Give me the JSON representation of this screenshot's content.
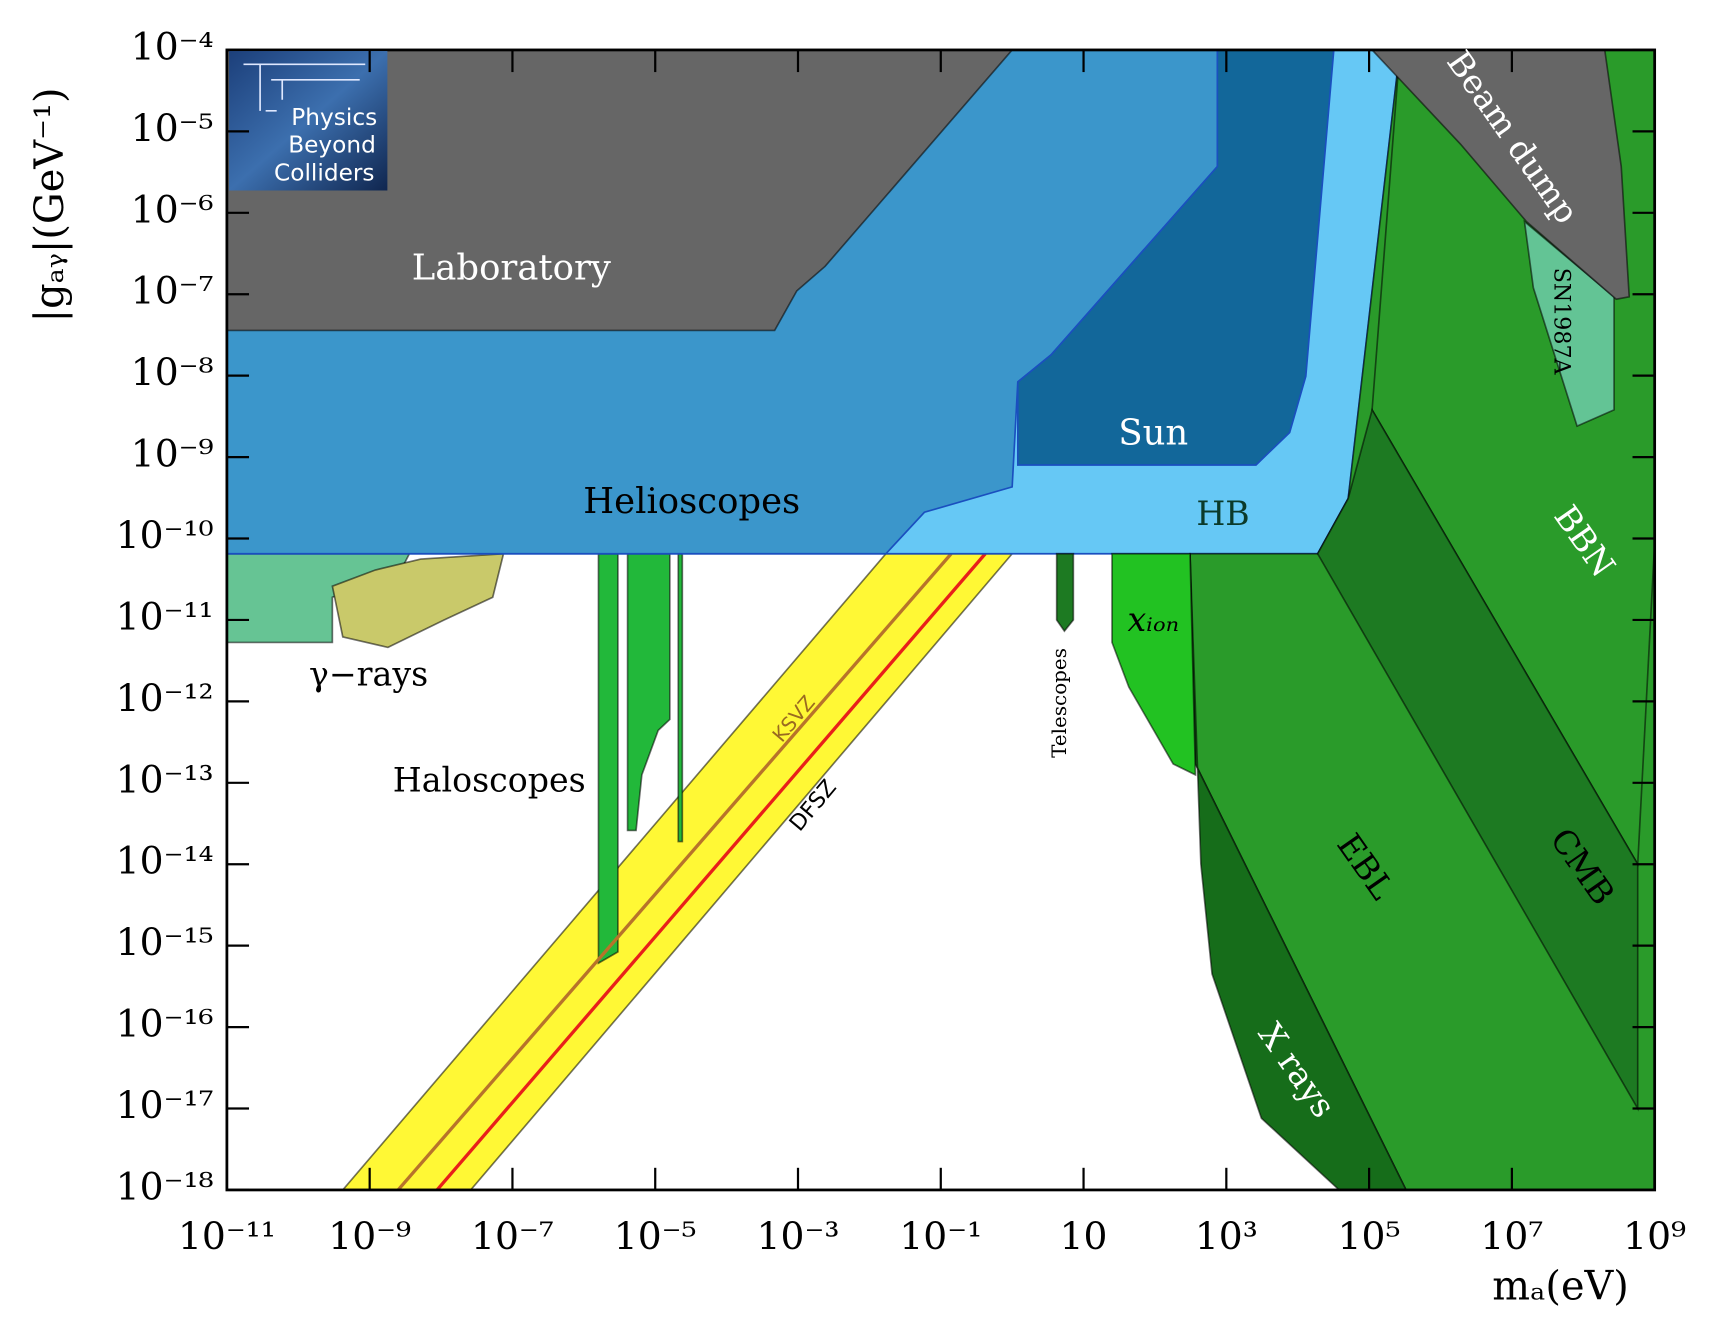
{
  "chart_data": {
    "type": "area",
    "xlabel": "mₐ(eV)",
    "ylabel": "|gₐᵧ|(GeV⁻¹)",
    "logo": [
      "Physics",
      "Beyond",
      "Colliders"
    ],
    "xscale": "log",
    "yscale": "log",
    "xlim": [
      1e-11,
      1000000000.0
    ],
    "ylim": [
      1e-18,
      0.0001
    ],
    "xticks": [
      {
        "value": 1e-11,
        "label": "10⁻¹¹"
      },
      {
        "value": 1e-09,
        "label": "10⁻⁹"
      },
      {
        "value": 1e-07,
        "label": "10⁻⁷"
      },
      {
        "value": 1e-05,
        "label": "10⁻⁵"
      },
      {
        "value": 0.001,
        "label": "10⁻³"
      },
      {
        "value": 0.1,
        "label": "10⁻¹"
      },
      10,
      {
        "value": 1000.0,
        "label": "10³"
      },
      {
        "value": 100000.0,
        "label": "10⁵"
      },
      {
        "value": 10000000.0,
        "label": "10⁷"
      },
      {
        "value": 1000000000.0,
        "label": "10⁹"
      }
    ],
    "yticks": [
      {
        "value": 0.0001,
        "label": "10⁻⁴"
      },
      {
        "value": 1e-05,
        "label": "10⁻⁵"
      },
      {
        "value": 1e-06,
        "label": "10⁻⁶"
      },
      {
        "value": 1e-07,
        "label": "10⁻⁷"
      },
      {
        "value": 1e-08,
        "label": "10⁻⁸"
      },
      {
        "value": 1e-09,
        "label": "10⁻⁹"
      },
      {
        "value": 1e-10,
        "label": "10⁻¹⁰"
      },
      {
        "value": 1e-11,
        "label": "10⁻¹¹"
      },
      {
        "value": 1e-12,
        "label": "10⁻¹²"
      },
      {
        "value": 1e-13,
        "label": "10⁻¹³"
      },
      {
        "value": 1e-14,
        "label": "10⁻¹⁴"
      },
      {
        "value": 1e-15,
        "label": "10⁻¹⁵"
      },
      {
        "value": 1e-16,
        "label": "10⁻¹⁶"
      },
      {
        "value": 1e-17,
        "label": "10⁻¹⁷"
      },
      {
        "value": 1e-18,
        "label": "10⁻¹⁸"
      }
    ],
    "regions": [
      {
        "color": "#fff835",
        "x": [
          4.2e-10,
          2.6e-08,
          1.0,
          0.017
        ],
        "y": [
          1e-18,
          1e-18,
          6.5e-11,
          6.5e-11
        ]
      },
      {
        "name": "γ−rays",
        "color": "#66c494",
        "x": [
          1e-11,
          3.6e-09,
          2.5e-09,
          3e-10,
          3e-10,
          1e-11
        ],
        "y": [
          6.5e-11,
          6.5e-11,
          3.5e-11,
          1.9e-11,
          5.3e-12,
          5.3e-12
        ]
      },
      {
        "color": "#c9c96a",
        "x": [
          3e-10,
          1.2e-09,
          5.2e-09,
          7.5e-08,
          5.3e-08,
          1.1e-08,
          1.8e-09,
          4.2e-10
        ],
        "y": [
          2.6e-11,
          4.1e-11,
          5.6e-11,
          6.5e-11,
          1.9e-11,
          1e-11,
          4.6e-12,
          6.2e-12
        ]
      },
      {
        "name": "Haloscopes",
        "color": "#22b83a",
        "x": [
          1.6e-06,
          3e-06,
          3e-06,
          1.6e-06
        ],
        "y": [
          6.5e-11,
          6.5e-11,
          8.4e-16,
          6.1e-16
        ]
      },
      {
        "color": "#22b83a",
        "x": [
          4.1e-06,
          1.6e-05,
          1.6e-05,
          1.1e-05,
          6.5e-06,
          5.4e-06,
          4.1e-06
        ],
        "y": [
          6.5e-11,
          6.5e-11,
          6e-13,
          4.4e-13,
          1.25e-13,
          2.6e-14,
          2.6e-14
        ]
      },
      {
        "color": "#22b83a",
        "x": [
          2.1e-05,
          2.4e-05,
          2.4e-05,
          2.1e-05
        ],
        "y": [
          6.5e-11,
          6.5e-11,
          1.9e-14,
          1.9e-14
        ]
      },
      {
        "name": "HB",
        "color": "#66c8f5",
        "x": [
          1e-11,
          19000.0,
          51000.0,
          270000.0,
          1e-11
        ],
        "y": [
          6.5e-11,
          6.5e-11,
          3.1e-10,
          0.0001,
          0.0001
        ]
      },
      {
        "name": "Helioscopes",
        "color": "#3b96cb",
        "x": [
          1e-11,
          0.017,
          0.059,
          1.0,
          1.2,
          3.5,
          750,
          750,
          1e-11
        ],
        "y": [
          6.5e-11,
          6.5e-11,
          2.1e-10,
          4.3e-10,
          8.4e-09,
          1.8e-08,
          3.7e-06,
          0.0001,
          0.0001
        ]
      },
      {
        "name": "Sun",
        "color": "#12679a",
        "x": [
          1.2,
          2600,
          7700,
          13000.0,
          32000.0,
          750,
          750,
          3.5,
          1.2
        ],
        "y": [
          8e-10,
          8e-10,
          2e-09,
          9.8e-09,
          0.0001,
          0.0001,
          3.7e-06,
          1.8e-08,
          8.4e-09
        ]
      },
      {
        "name": "Laboratory",
        "color": "#666666",
        "x": [
          1e-11,
          1.0,
          0.0024,
          0.00096,
          0.00047,
          1e-11
        ],
        "y": [
          0.0001,
          0.0001,
          2.2e-07,
          1.1e-07,
          3.6e-08,
          3.6e-08
        ]
      },
      {
        "name": "EBL",
        "color": "#2a9b2a",
        "x": [
          310,
          19000.0,
          51000.0,
          270000.0,
          1000000000.0,
          1000000000.0,
          330000.0,
          370
        ],
        "y": [
          6.5e-11,
          6.5e-11,
          3.1e-10,
          0.0001,
          0.0001,
          1e-18,
          1e-18,
          1.7e-13
        ]
      },
      {
        "name": "BBN",
        "color": "#2a9b2a",
        "x": [
          270000.0,
          1000000000.0,
          1000000000.0,
          580000000.0,
          110000.0
        ],
        "y": [
          0.0001,
          0.0001,
          8.9e-11,
          1e-14,
          3.8e-09
        ]
      },
      {
        "name": "CMB",
        "color": "#1d7a22",
        "x": [
          19000.0,
          51000.0,
          110000.0,
          580000000.0,
          580000000.0
        ],
        "y": [
          6.5e-11,
          3.1e-10,
          3.8e-09,
          1e-14,
          1e-17
        ]
      },
      {
        "name": "X rays",
        "color": "#166d1a",
        "x": [
          310,
          370,
          330000.0,
          38000.0,
          3100,
          630,
          440
        ],
        "y": [
          6.5e-11,
          1.7e-13,
          1e-18,
          1e-18,
          7.6e-18,
          4.5e-16,
          1e-14
        ]
      },
      {
        "name": "xᵢₒₙ",
        "color": "#22c222",
        "x": [
          25,
          310,
          370,
          180,
          43,
          25
        ],
        "y": [
          6.5e-11,
          6.5e-11,
          1.25e-13,
          1.7e-13,
          1.5e-12,
          5.3e-12
        ]
      },
      {
        "name": "Telescopes",
        "color": "#1d7a22",
        "x": [
          4.2,
          7.2,
          7.2,
          5.4,
          4.2
        ],
        "y": [
          6.5e-11,
          6.5e-11,
          1e-11,
          7.3e-12,
          1e-11
        ]
      },
      {
        "name": "SN1987A",
        "color": "#63c495",
        "x": [
          15000000.0,
          270000000.0,
          270000000.0,
          82000000.0,
          20000000.0
        ],
        "y": [
          7.8e-07,
          9.3e-08,
          3.8e-09,
          2.4e-09,
          1.2e-07
        ]
      },
      {
        "name": "Beam dump",
        "color": "#666666",
        "x": [
          110000.0,
          200000000.0,
          340000000.0,
          440000000.0,
          290000000.0,
          16000000.0,
          1900000.0
        ],
        "y": [
          0.0001,
          0.0001,
          3.7e-06,
          9.3e-08,
          8.7e-08,
          7.8e-07,
          7e-06
        ]
      }
    ],
    "lines": [
      {
        "name": "KSVZ",
        "color": "#b8732a",
        "x": [
          2.5e-09,
          0.14
        ],
        "y": [
          1e-18,
          6.5e-11
        ]
      },
      {
        "name": "DFSZ",
        "color": "#e8201a",
        "x": [
          8.8e-09,
          0.42
        ],
        "y": [
          1e-18,
          6.5e-11
        ]
      }
    ]
  }
}
